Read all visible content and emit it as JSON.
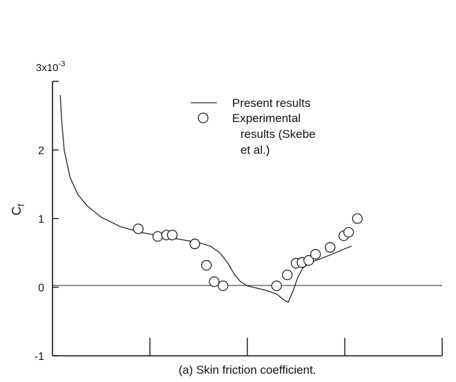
{
  "chart_data": {
    "type": "line",
    "caption": "(a) Skin friction coefficient.",
    "ylabel_main": "C",
    "ylabel_sub": "f",
    "y_multiplier": "3x10",
    "y_multiplier_exp": "-3",
    "ylim": [
      -1,
      3
    ],
    "xlim": [
      0,
      4
    ],
    "y_tick_labels": [
      "2",
      "1",
      "0",
      "-1"
    ],
    "y_ticks": [
      2,
      1,
      0,
      -1
    ],
    "x_ticks": [
      1,
      2,
      3,
      4
    ],
    "zero_line": true,
    "grid": false,
    "legend": {
      "placement": "top-center",
      "line_label": "Present results",
      "marker_label_lines": [
        "Experimental",
        "results (Skebe",
        "et al.)"
      ]
    },
    "series": [
      {
        "name": "Present results",
        "kind": "line",
        "points": [
          [
            0.08,
            2.8
          ],
          [
            0.09,
            2.5
          ],
          [
            0.12,
            2.0
          ],
          [
            0.18,
            1.6
          ],
          [
            0.26,
            1.35
          ],
          [
            0.36,
            1.18
          ],
          [
            0.5,
            1.02
          ],
          [
            0.7,
            0.88
          ],
          [
            0.9,
            0.8
          ],
          [
            1.1,
            0.75
          ],
          [
            1.3,
            0.7
          ],
          [
            1.5,
            0.65
          ],
          [
            1.62,
            0.6
          ],
          [
            1.72,
            0.5
          ],
          [
            1.8,
            0.35
          ],
          [
            1.87,
            0.18
          ],
          [
            1.93,
            0.08
          ],
          [
            2.0,
            0.02
          ],
          [
            2.2,
            -0.05
          ],
          [
            2.3,
            -0.1
          ],
          [
            2.37,
            -0.18
          ],
          [
            2.42,
            -0.22
          ],
          [
            2.47,
            -0.05
          ],
          [
            2.52,
            0.15
          ],
          [
            2.57,
            0.28
          ],
          [
            2.65,
            0.36
          ],
          [
            2.78,
            0.43
          ],
          [
            2.9,
            0.5
          ],
          [
            3.0,
            0.56
          ],
          [
            3.07,
            0.6
          ]
        ]
      },
      {
        "name": "Experimental results (Skebe et al.)",
        "kind": "scatter",
        "points": [
          [
            0.88,
            0.85
          ],
          [
            1.08,
            0.74
          ],
          [
            1.17,
            0.76
          ],
          [
            1.23,
            0.76
          ],
          [
            1.46,
            0.63
          ],
          [
            1.58,
            0.32
          ],
          [
            1.66,
            0.08
          ],
          [
            1.75,
            0.02
          ],
          [
            2.3,
            0.02
          ],
          [
            2.41,
            0.18
          ],
          [
            2.5,
            0.35
          ],
          [
            2.56,
            0.36
          ],
          [
            2.63,
            0.39
          ],
          [
            2.7,
            0.48
          ],
          [
            2.85,
            0.58
          ],
          [
            2.99,
            0.75
          ],
          [
            3.04,
            0.8
          ],
          [
            3.13,
            1.0
          ]
        ]
      }
    ]
  }
}
